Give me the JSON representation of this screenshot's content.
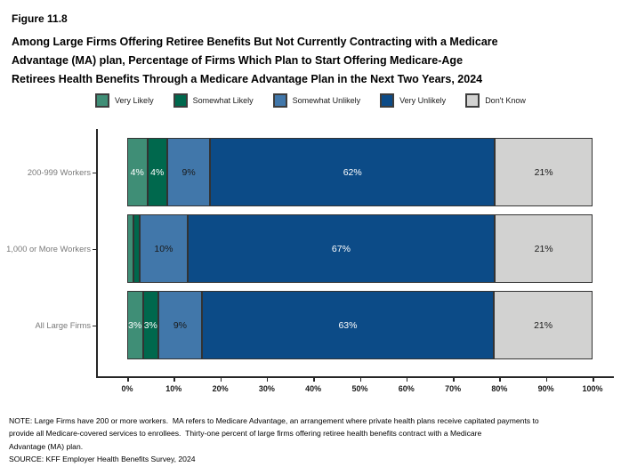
{
  "figure": {
    "label": "Figure 11.8",
    "title_lines": [
      "Among Large Firms Offering Retiree Benefits But Not Currently Contracting with a Medicare",
      "Advantage (MA) plan, Percentage of Firms Which Plan to Start Offering Medicare-Age",
      "Retirees Health Benefits Through a Medicare Advantage Plan in the Next Two Years, 2024"
    ]
  },
  "chart_data": {
    "type": "bar",
    "stacked": true,
    "orientation": "horizontal",
    "categories": [
      "200-999 Workers",
      "1,000 or More Workers",
      "All Large Firms"
    ],
    "series": [
      {
        "name": "Very Likely",
        "color": "#3F8E76",
        "values": [
          4,
          1,
          3
        ],
        "labels": [
          "4%",
          "",
          "3%"
        ],
        "label_color": "#FFFFFF"
      },
      {
        "name": "Somewhat Likely",
        "color": "#00684D",
        "values": [
          4,
          1,
          3
        ],
        "labels": [
          "4%",
          "",
          "3%"
        ],
        "label_color": "#FFFFFF"
      },
      {
        "name": "Somewhat Unlikely",
        "color": "#4177AA",
        "values": [
          9,
          10,
          9
        ],
        "labels": [
          "9%",
          "10%",
          "9%"
        ],
        "label_color": "#1A1A1A"
      },
      {
        "name": "Very Unlikely",
        "color": "#0C4B87",
        "values": [
          62,
          67,
          63
        ],
        "labels": [
          "62%",
          "67%",
          "63%"
        ],
        "label_color": "#FFFFFF"
      },
      {
        "name": "Don't Know",
        "color": "#D2D2D1",
        "values": [
          21,
          21,
          21
        ],
        "labels": [
          "21%",
          "21%",
          "21%"
        ],
        "label_color": "#1A1A1A"
      }
    ],
    "x_ticks": [
      "0%",
      "10%",
      "20%",
      "30%",
      "40%",
      "50%",
      "60%",
      "70%",
      "80%",
      "90%",
      "100%"
    ],
    "xlim": [
      0,
      100
    ],
    "legend_position": "top",
    "grid": false
  },
  "notes": {
    "lines": [
      "NOTE: Large Firms have 200 or more workers.  MA refers to Medicare Advantage, an arrangement where private health plans receive capitated payments to",
      "provide all Medicare-covered services to enrollees.  Thirty-one percent of large firms offering retiree health benefits contract with a Medicare",
      "Advantage (MA) plan."
    ],
    "source": "SOURCE: KFF Employer Health Benefits Survey, 2024"
  }
}
